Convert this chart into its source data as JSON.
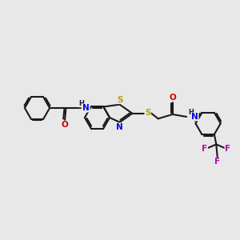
{
  "bg_color": "#e8e8e8",
  "bond_color": "#1a1a1a",
  "S_color": "#b8a000",
  "N_color": "#0000ee",
  "O_color": "#cc0000",
  "F_color": "#bb00bb",
  "font_size": 7.5,
  "lw": 1.5,
  "r_hex": 0.52,
  "xlim": [
    0,
    10
  ],
  "ylim": [
    0,
    10
  ]
}
